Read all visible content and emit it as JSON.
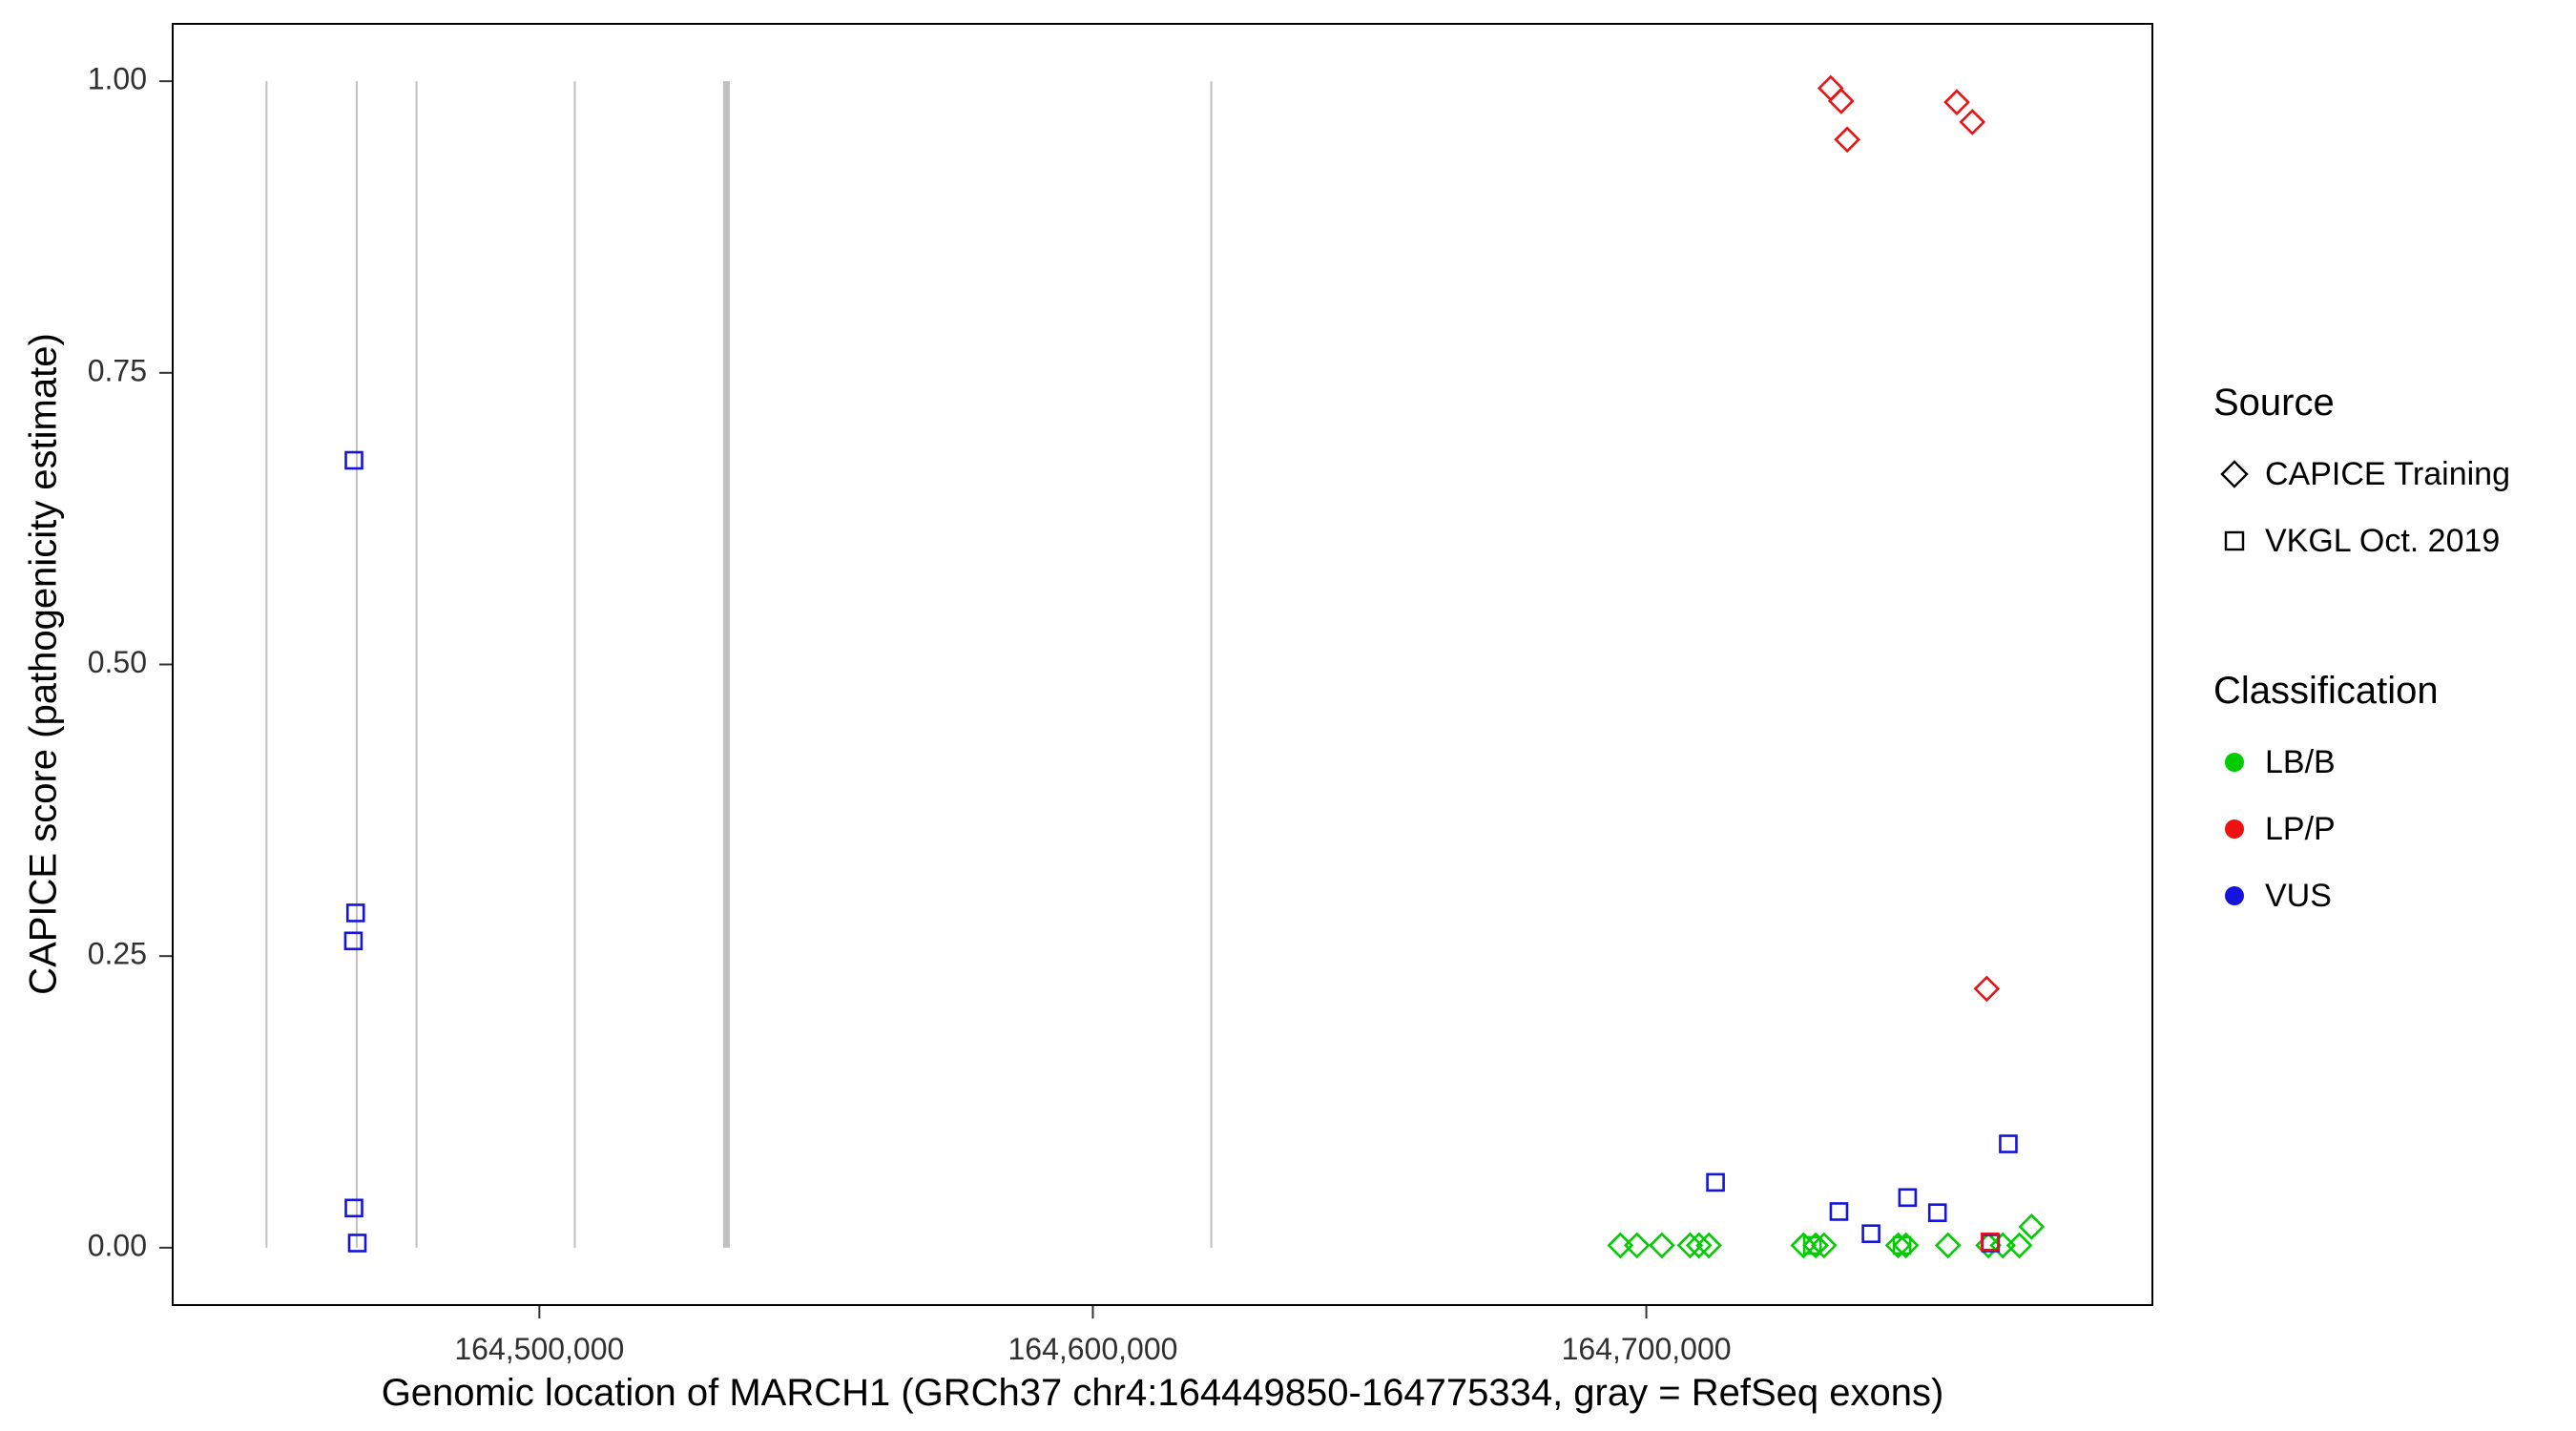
{
  "chart_data": {
    "type": "scatter",
    "title": "",
    "xlabel": "Genomic location of MARCH1 (GRCh37 chr4:164449850-164775334, gray = RefSeq exons)",
    "ylabel": "CAPICE score (pathogenicity estimate)",
    "xlim": [
      164433576,
      164791608
    ],
    "ylim": [
      -0.05,
      1.05
    ],
    "grid": "off",
    "x_ticks": [
      {
        "value": 164500000,
        "label": "164,500,000"
      },
      {
        "value": 164600000,
        "label": "164,600,000"
      },
      {
        "value": 164700000,
        "label": "164,700,000"
      }
    ],
    "y_ticks": [
      {
        "value": 0.0,
        "label": "0.00"
      },
      {
        "value": 0.25,
        "label": "0.25"
      },
      {
        "value": 0.5,
        "label": "0.50"
      },
      {
        "value": 0.75,
        "label": "0.75"
      },
      {
        "value": 1.0,
        "label": "1.00"
      }
    ],
    "exon_color": "#C0C0C0",
    "refseq_exon_lines": [
      {
        "x": 164450700,
        "stroke_width": 2
      },
      {
        "x": 164467000,
        "stroke_width": 2
      },
      {
        "x": 164477800,
        "stroke_width": 2
      },
      {
        "x": 164506400,
        "stroke_width": 2
      },
      {
        "x": 164533800,
        "stroke_width": 7
      },
      {
        "x": 164621400,
        "stroke_width": 2
      }
    ],
    "color_by_classification": {
      "LB/B": "#00CC00",
      "LP/P": "#EE1111",
      "VUS": "#1414DD"
    },
    "shape_by_source": {
      "CAPICE Training": "diamond",
      "VKGL Oct. 2019": "square"
    },
    "points": [
      {
        "x": 164695300,
        "y": 0.002,
        "classification": "LB/B",
        "source": "CAPICE Training"
      },
      {
        "x": 164698300,
        "y": 0.002,
        "classification": "LB/B",
        "source": "CAPICE Training"
      },
      {
        "x": 164702800,
        "y": 0.002,
        "classification": "LB/B",
        "source": "CAPICE Training"
      },
      {
        "x": 164707900,
        "y": 0.002,
        "classification": "LB/B",
        "source": "CAPICE Training"
      },
      {
        "x": 164709500,
        "y": 0.002,
        "classification": "LB/B",
        "source": "CAPICE Training"
      },
      {
        "x": 164711300,
        "y": 0.002,
        "classification": "LB/B",
        "source": "CAPICE Training"
      },
      {
        "x": 164728400,
        "y": 0.002,
        "classification": "LB/B",
        "source": "CAPICE Training"
      },
      {
        "x": 164730600,
        "y": 0.002,
        "classification": "LB/B",
        "source": "CAPICE Training"
      },
      {
        "x": 164732100,
        "y": 0.002,
        "classification": "LB/B",
        "source": "CAPICE Training"
      },
      {
        "x": 164745500,
        "y": 0.002,
        "classification": "LB/B",
        "source": "CAPICE Training"
      },
      {
        "x": 164746900,
        "y": 0.002,
        "classification": "LB/B",
        "source": "CAPICE Training"
      },
      {
        "x": 164754500,
        "y": 0.002,
        "classification": "LB/B",
        "source": "CAPICE Training"
      },
      {
        "x": 164761800,
        "y": 0.002,
        "classification": "LB/B",
        "source": "CAPICE Training"
      },
      {
        "x": 164764400,
        "y": 0.002,
        "classification": "LB/B",
        "source": "CAPICE Training"
      },
      {
        "x": 164767400,
        "y": 0.002,
        "classification": "LB/B",
        "source": "CAPICE Training"
      },
      {
        "x": 164769600,
        "y": 0.018,
        "classification": "LB/B",
        "source": "CAPICE Training"
      },
      {
        "x": 164730000,
        "y": 0.002,
        "classification": "LB/B",
        "source": "VKGL Oct. 2019"
      },
      {
        "x": 164746200,
        "y": 0.002,
        "classification": "LB/B",
        "source": "VKGL Oct. 2019"
      },
      {
        "x": 164466500,
        "y": 0.675,
        "classification": "VUS",
        "source": "VKGL Oct. 2019"
      },
      {
        "x": 164466800,
        "y": 0.287,
        "classification": "VUS",
        "source": "VKGL Oct. 2019"
      },
      {
        "x": 164466400,
        "y": 0.263,
        "classification": "VUS",
        "source": "VKGL Oct. 2019"
      },
      {
        "x": 164466500,
        "y": 0.034,
        "classification": "VUS",
        "source": "VKGL Oct. 2019"
      },
      {
        "x": 164467100,
        "y": 0.004,
        "classification": "VUS",
        "source": "VKGL Oct. 2019"
      },
      {
        "x": 164712500,
        "y": 0.056,
        "classification": "VUS",
        "source": "VKGL Oct. 2019"
      },
      {
        "x": 164734800,
        "y": 0.031,
        "classification": "VUS",
        "source": "VKGL Oct. 2019"
      },
      {
        "x": 164740600,
        "y": 0.012,
        "classification": "VUS",
        "source": "VKGL Oct. 2019"
      },
      {
        "x": 164747200,
        "y": 0.043,
        "classification": "VUS",
        "source": "VKGL Oct. 2019"
      },
      {
        "x": 164752600,
        "y": 0.03,
        "classification": "VUS",
        "source": "VKGL Oct. 2019"
      },
      {
        "x": 164762200,
        "y": 0.004,
        "classification": "VUS",
        "source": "VKGL Oct. 2019"
      },
      {
        "x": 164765400,
        "y": 0.089,
        "classification": "VUS",
        "source": "VKGL Oct. 2019"
      },
      {
        "x": 164762100,
        "y": 0.005,
        "classification": "LP/P",
        "source": "VKGL Oct. 2019"
      },
      {
        "x": 164733300,
        "y": 0.994,
        "classification": "LP/P",
        "source": "CAPICE Training"
      },
      {
        "x": 164735200,
        "y": 0.983,
        "classification": "LP/P",
        "source": "CAPICE Training"
      },
      {
        "x": 164736300,
        "y": 0.95,
        "classification": "LP/P",
        "source": "CAPICE Training"
      },
      {
        "x": 164756100,
        "y": 0.982,
        "classification": "LP/P",
        "source": "CAPICE Training"
      },
      {
        "x": 164758900,
        "y": 0.965,
        "classification": "LP/P",
        "source": "CAPICE Training"
      },
      {
        "x": 164761500,
        "y": 0.222,
        "classification": "LP/P",
        "source": "CAPICE Training"
      }
    ]
  },
  "legend": {
    "source_title": "Source",
    "source_items": [
      {
        "label": "CAPICE Training",
        "shape": "diamond"
      },
      {
        "label": "VKGL Oct. 2019",
        "shape": "square"
      }
    ],
    "classification_title": "Classification",
    "classification_items": [
      {
        "label": "LB/B",
        "color": "#00CC00"
      },
      {
        "label": "LP/P",
        "color": "#EE1111"
      },
      {
        "label": "VUS",
        "color": "#1414DD"
      }
    ]
  }
}
